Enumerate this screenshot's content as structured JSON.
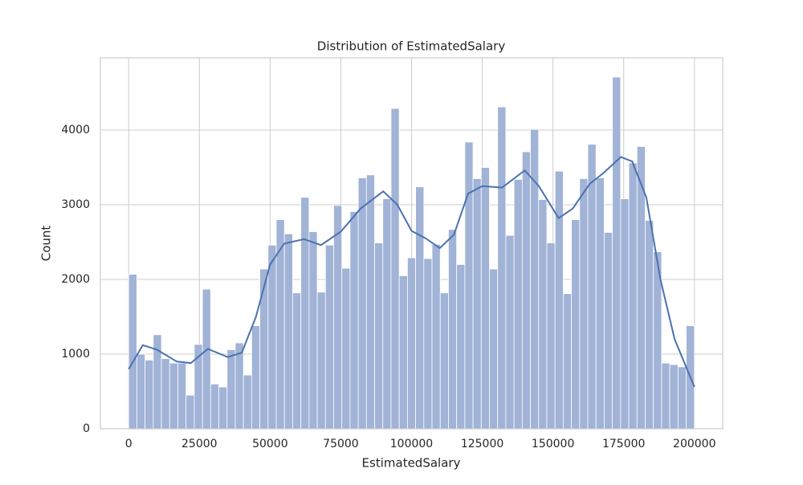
{
  "chart_data": {
    "type": "histogram",
    "title": "Distribution of EstimatedSalary",
    "xlabel": "EstimatedSalary",
    "ylabel": "Count",
    "bins": [
      0,
      2899,
      5797,
      8696,
      11594,
      14493,
      17391,
      20290,
      23188,
      26087,
      28986,
      31884,
      34783,
      37681,
      40580,
      43478,
      46377,
      49275,
      52174,
      55072,
      57971,
      60870,
      63768,
      66667,
      69565,
      72464,
      75362,
      78261,
      81159,
      84058,
      86957,
      89855,
      92754,
      95652,
      98551,
      101449,
      104348,
      107246,
      110145,
      113043,
      115942,
      118841,
      121739,
      124638,
      127536,
      130435,
      133333,
      136232,
      139130,
      142029,
      144928,
      147826,
      150725,
      153623,
      156522,
      159420,
      162319,
      165217,
      168116,
      171014,
      173913,
      176812,
      179710,
      182609,
      185507,
      188406,
      191304,
      194203,
      197101,
      200000
    ],
    "counts": [
      2070,
      1000,
      920,
      1260,
      940,
      880,
      880,
      450,
      1130,
      1870,
      600,
      560,
      1060,
      1150,
      720,
      1380,
      2140,
      2460,
      2800,
      2610,
      1820,
      3100,
      2640,
      1830,
      2460,
      2990,
      2150,
      2910,
      3360,
      3400,
      2490,
      3080,
      4290,
      2050,
      2290,
      3240,
      2280,
      2470,
      1820,
      2670,
      2200,
      3840,
      3350,
      3500,
      2140,
      4310,
      2590,
      3340,
      3710,
      4010,
      3070,
      2490,
      3450,
      1810,
      2800,
      3350,
      3810,
      3360,
      2630,
      4710,
      3080,
      3560,
      3780,
      2790,
      2370,
      880,
      860,
      830,
      1380
    ],
    "color": "#a1b3d6",
    "kde": {
      "color": "#4c72b0",
      "x": [
        0,
        5000,
        10000,
        17000,
        22000,
        28000,
        35000,
        40000,
        45000,
        50000,
        55000,
        62000,
        68000,
        75000,
        82000,
        90000,
        95000,
        100000,
        105000,
        110000,
        115000,
        120000,
        125000,
        132000,
        140000,
        145000,
        152000,
        157000,
        163000,
        168000,
        174000,
        178000,
        183000,
        188000,
        193000,
        200000
      ],
      "values": [
        800,
        1120,
        1060,
        900,
        880,
        1070,
        960,
        1020,
        1500,
        2200,
        2480,
        2540,
        2460,
        2640,
        2950,
        3180,
        3000,
        2650,
        2550,
        2420,
        2600,
        3150,
        3250,
        3230,
        3460,
        3250,
        2820,
        2950,
        3280,
        3430,
        3640,
        3580,
        3100,
        2000,
        1200,
        560
      ]
    },
    "xlim": [
      -10000,
      210000
    ],
    "ylim": [
      0,
      4968
    ],
    "xticks": [
      0,
      25000,
      50000,
      75000,
      100000,
      125000,
      150000,
      175000,
      200000
    ],
    "yticks": [
      0,
      1000,
      2000,
      3000,
      4000
    ],
    "grid": true
  }
}
